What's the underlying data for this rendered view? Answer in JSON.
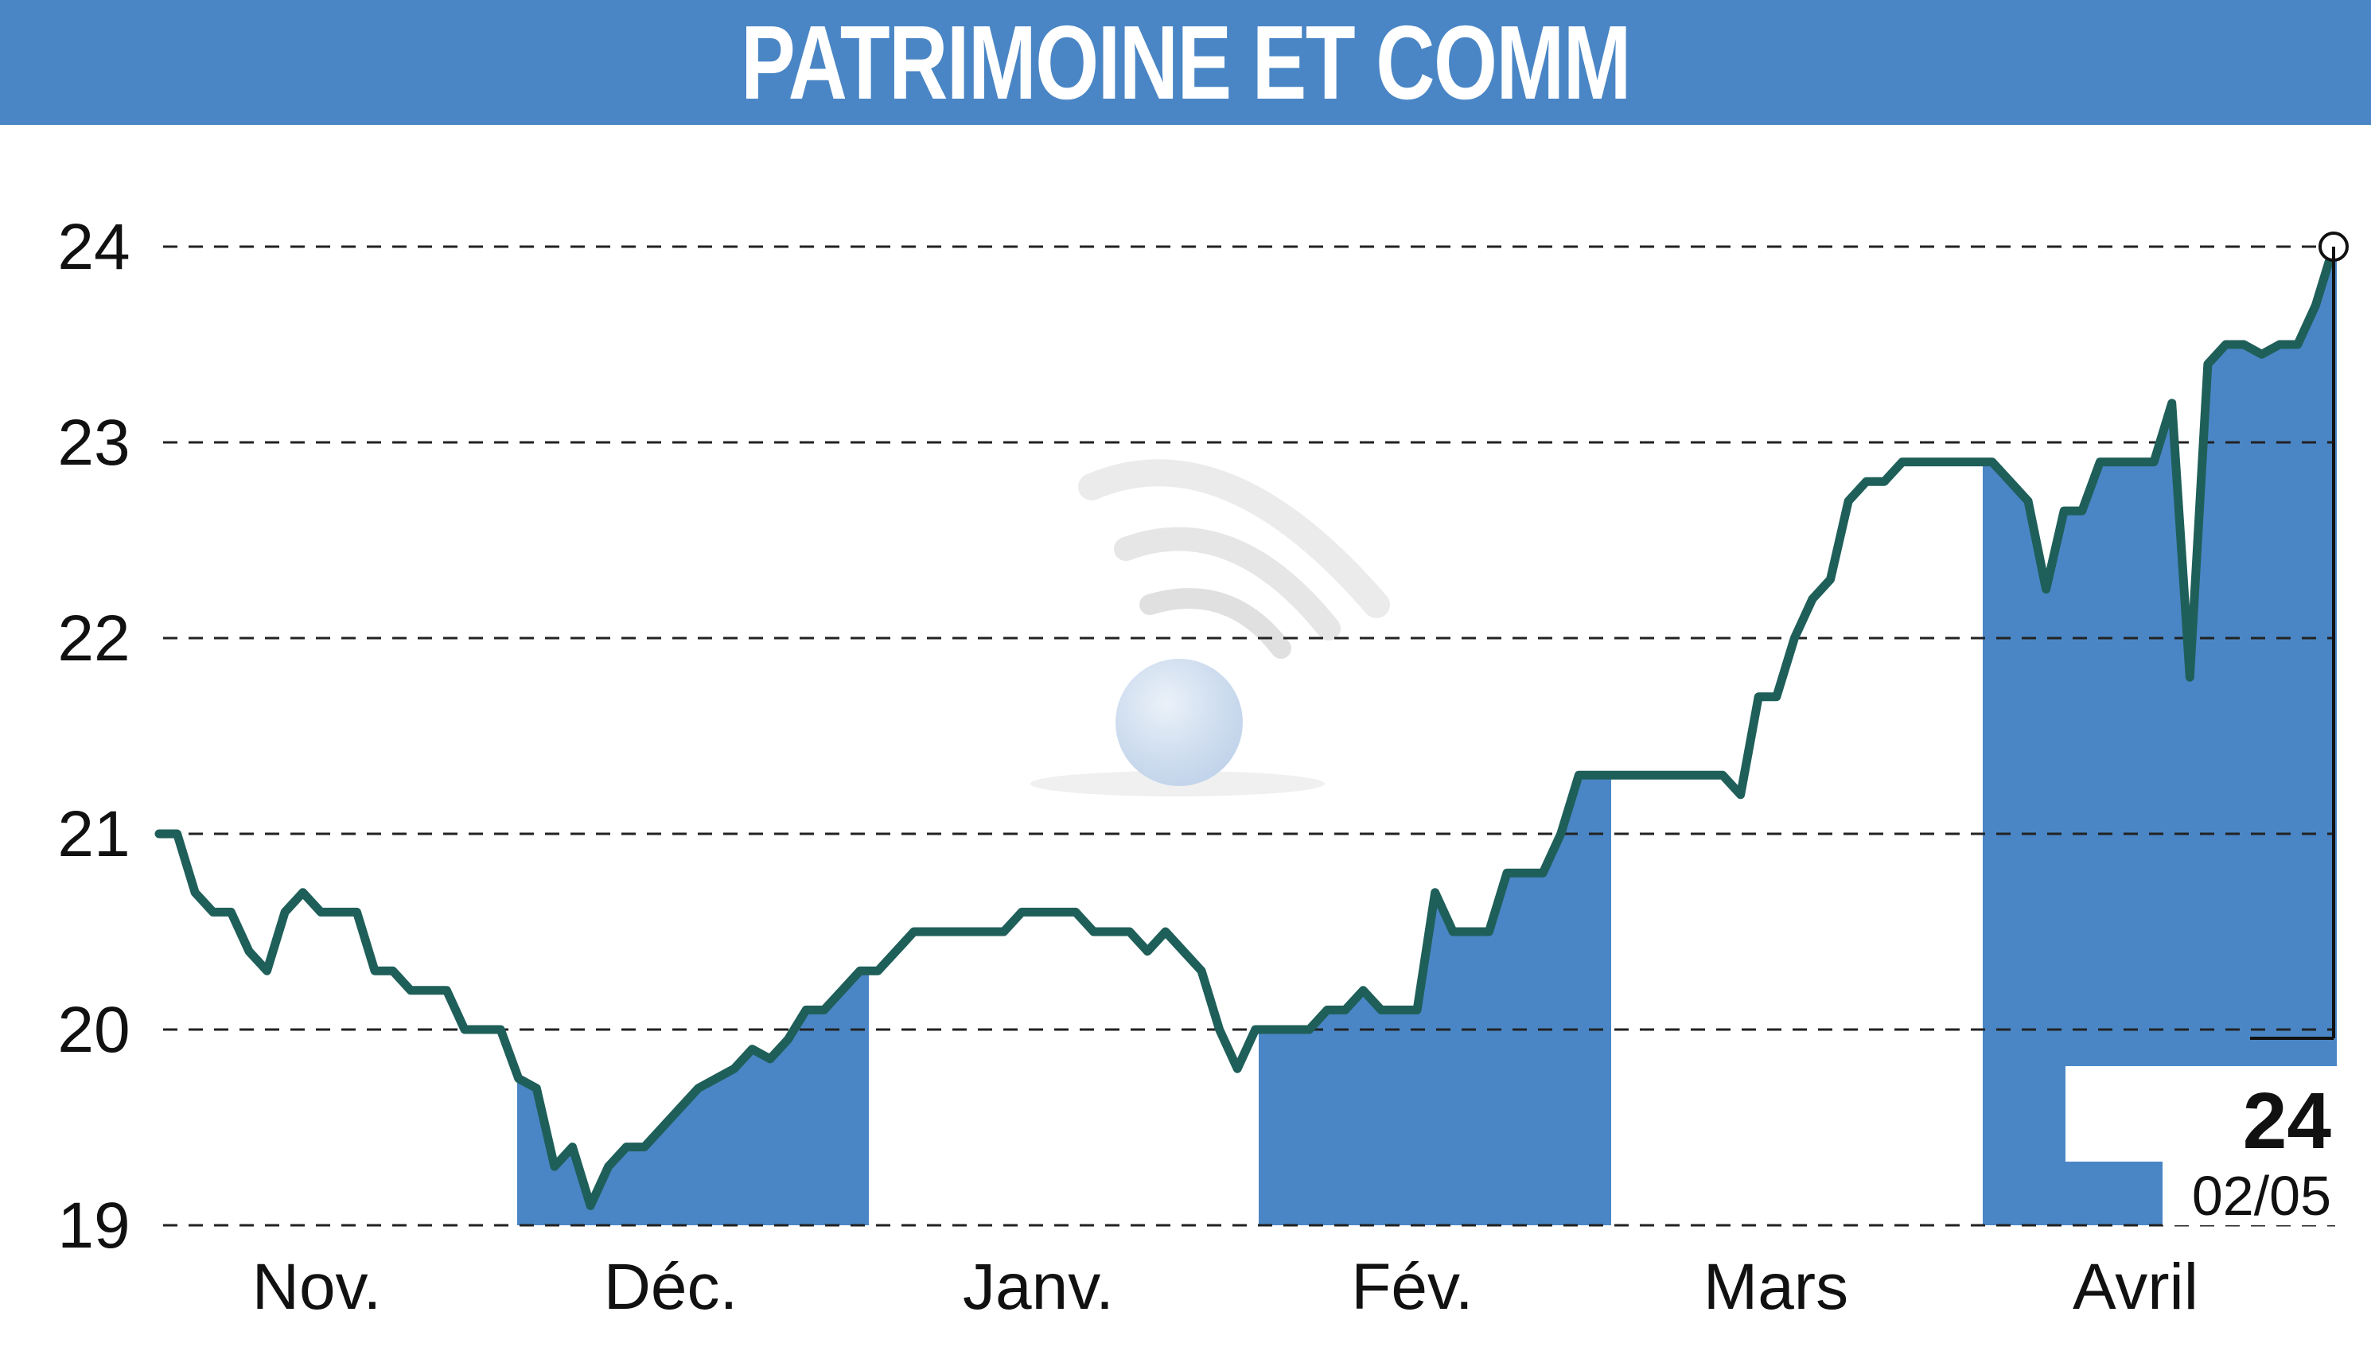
{
  "title": "PATRIMOINE ET COMM",
  "colors": {
    "accent": "#4a86c5",
    "line": "#1f5f5a",
    "grid": "#222222"
  },
  "chart_data": {
    "type": "line",
    "title": "PATRIMOINE ET COMM",
    "ylim": [
      19,
      24
    ],
    "yticks": [
      19,
      20,
      21,
      22,
      23,
      24
    ],
    "months": [
      "Nov.",
      "Déc.",
      "Janv.",
      "Févr.",
      "Mars",
      "Avril"
    ],
    "month_labels": [
      "Nov.",
      "Déc.",
      "Janv.",
      "Fév.",
      "Mars",
      "Avril"
    ],
    "shaded_months": [
      "Déc.",
      "Févr.",
      "Avril"
    ],
    "grid": true,
    "last_value": "24",
    "last_date": "02/05",
    "series": [
      {
        "values": [
          21.0,
          21.0,
          20.7,
          20.6,
          20.6,
          20.4,
          20.3,
          20.6,
          20.7,
          20.6,
          20.6,
          20.6,
          20.3,
          20.3,
          20.2,
          20.2,
          20.2,
          20.0,
          20.0,
          20.0,
          19.75,
          19.7,
          19.3,
          19.4,
          19.1,
          19.3,
          19.4,
          19.4,
          19.5,
          19.6,
          19.7,
          19.75,
          19.8,
          19.9,
          19.85,
          19.95,
          20.1,
          20.1,
          20.2,
          20.3,
          20.3,
          20.4,
          20.5,
          20.5,
          20.5,
          20.5,
          20.5,
          20.5,
          20.6,
          20.6,
          20.6,
          20.6,
          20.5,
          20.5,
          20.5,
          20.4,
          20.5,
          20.4,
          20.3,
          20.0,
          19.8,
          20.0,
          20.0,
          20.0,
          20.0,
          20.1,
          20.1,
          20.2,
          20.1,
          20.1,
          20.1,
          20.7,
          20.5,
          20.5,
          20.5,
          20.8,
          20.8,
          20.8,
          21.0,
          21.3,
          21.3,
          21.3,
          21.3,
          21.3,
          21.3,
          21.3,
          21.3,
          21.3,
          21.2,
          21.7,
          21.7,
          22.0,
          22.2,
          22.3,
          22.7,
          22.8,
          22.8,
          22.9,
          22.9,
          22.9,
          22.9,
          22.9,
          22.9,
          22.8,
          22.7,
          22.25,
          22.65,
          22.65,
          22.9,
          22.9,
          22.9,
          22.9,
          23.2,
          21.8,
          23.4,
          23.5,
          23.5,
          23.45,
          23.5,
          23.5,
          23.7,
          24.0
        ]
      }
    ]
  }
}
